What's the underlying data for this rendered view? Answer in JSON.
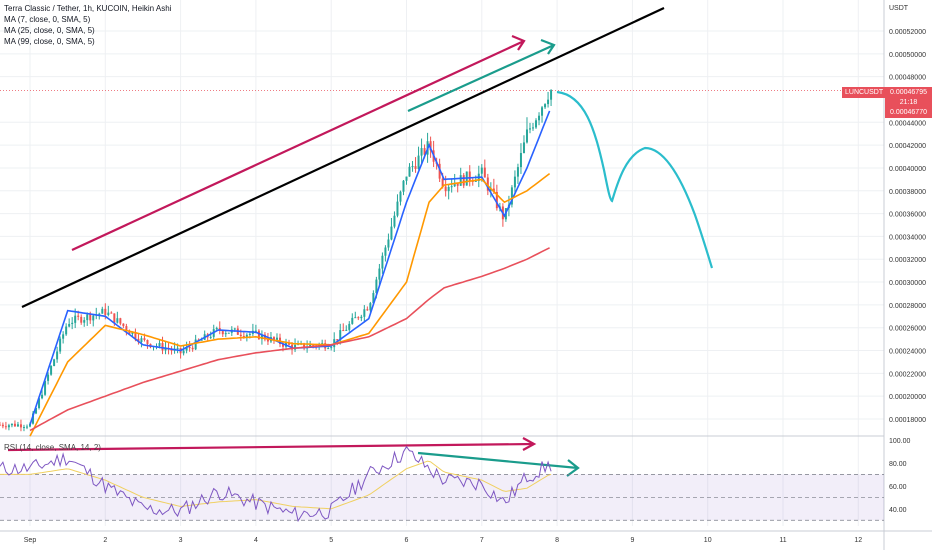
{
  "header": {
    "title": "Terra Classic / Tether, 1h, KUCOIN, Heikin Ashi",
    "indicators": [
      "MA (7, close, 0, SMA, 5)",
      "MA (25, close, 0, SMA, 5)",
      "MA (99, close, 0, SMA, 5)"
    ],
    "rsi_label": "RSI (14, close, SMA, 14, 2)"
  },
  "price_axis": {
    "unit": "USDT",
    "ticks": [
      "0.00052000",
      "0.00050000",
      "0.00048000",
      "0.00044000",
      "0.00042000",
      "0.00040000",
      "0.00038000",
      "0.00036000",
      "0.00034000",
      "0.00032000",
      "0.00030000",
      "0.00028000",
      "0.00026000",
      "0.00024000",
      "0.00022000",
      "0.00020000",
      "0.00018000"
    ],
    "symbol_tag": "LUNCUSDT",
    "last_price": "0.00046795",
    "countdown": "21:18",
    "second_price": "0.00046770"
  },
  "rsi_axis": {
    "ticks": [
      "100.00",
      "80.00",
      "60.00",
      "40.00"
    ]
  },
  "time_axis": {
    "ticks": [
      "Sep",
      "2",
      "3",
      "4",
      "5",
      "6",
      "7",
      "8",
      "9",
      "10",
      "11",
      "12"
    ]
  },
  "colors": {
    "bull": "#26a69a",
    "bear": "#ef5350",
    "ma7": "#2962ff",
    "ma25": "#ff9800",
    "ma99": "#e8505b",
    "trendline": "#000000",
    "arrow_red": "#c2185b",
    "arrow_teal": "#1a9c8c",
    "projection": "#2bbdcc",
    "rsi_line": "#7e57c2",
    "rsi_ma": "#f0d060",
    "rsi_band": "#7e57c2"
  },
  "chart_data": {
    "type": "line",
    "title": "Terra Classic / Tether, 1h, KUCOIN, Heikin Ashi",
    "xlabel": "",
    "ylabel": "USDT",
    "x": [
      1,
      1.5,
      2,
      2.5,
      3,
      3.5,
      4,
      4.5,
      5,
      5.5,
      6,
      6.3,
      6.5,
      7,
      7.3,
      7.6,
      7.9
    ],
    "ylim": [
      0.00016,
      0.00054
    ],
    "xlim": [
      0.6,
      12.4
    ],
    "log_scale": false,
    "grid": true,
    "series": [
      {
        "name": "MA (7, close, 0, SMA, 5)",
        "values": [
          0.000175,
          0.000275,
          0.00027,
          0.000245,
          0.00024,
          0.000258,
          0.000256,
          0.000242,
          0.000244,
          0.000268,
          0.00037,
          0.00042,
          0.00039,
          0.000392,
          0.000358,
          0.0004,
          0.00045
        ]
      },
      {
        "name": "MA (25, close, 0, SMA, 5)",
        "values": [
          0.000165,
          0.00023,
          0.000262,
          0.000254,
          0.000244,
          0.00025,
          0.000252,
          0.000246,
          0.000245,
          0.000255,
          0.0003,
          0.00037,
          0.000385,
          0.00039,
          0.00037,
          0.00038,
          0.000395
        ]
      },
      {
        "name": "MA (99, close, 0, SMA, 5)",
        "values": [
          0.00017,
          0.000188,
          0.0002,
          0.000212,
          0.000222,
          0.000232,
          0.000238,
          0.000242,
          0.000245,
          0.000252,
          0.000268,
          0.000285,
          0.000295,
          0.000305,
          0.000312,
          0.00032,
          0.00033
        ]
      }
    ],
    "candles_close": [
      0.000175,
      0.000265,
      0.000274,
      0.000248,
      0.000238,
      0.000258,
      0.000254,
      0.000243,
      0.000246,
      0.00028,
      0.000395,
      0.00042,
      0.000385,
      0.000395,
      0.000355,
      0.00043,
      0.000468
    ],
    "rsi": {
      "ylim": [
        25,
        100
      ],
      "band": [
        30,
        70
      ],
      "x": [
        1,
        1.5,
        2,
        2.5,
        3,
        3.5,
        4,
        4.5,
        5,
        5.5,
        6,
        6.3,
        6.5,
        7,
        7.3,
        7.6,
        7.9
      ],
      "values": [
        75,
        85,
        60,
        40,
        38,
        55,
        45,
        35,
        38,
        70,
        90,
        75,
        65,
        62,
        45,
        68,
        78
      ],
      "ma": [
        70,
        75,
        65,
        50,
        42,
        46,
        48,
        42,
        40,
        52,
        75,
        82,
        72,
        65,
        55,
        58,
        70
      ]
    }
  }
}
